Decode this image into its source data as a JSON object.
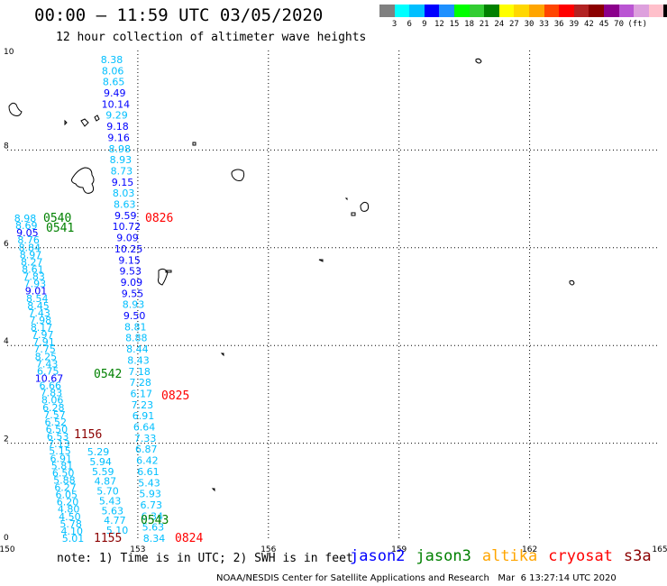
{
  "header": {
    "title": "00:00 – 11:59 UTC 03/05/2020",
    "subtitle": "12 hour collection of altimeter wave heights"
  },
  "colorbar": {
    "colors": [
      "#808080",
      "#00ffff",
      "#00bfff",
      "#0000ff",
      "#1e90ff",
      "#00ff00",
      "#32cd32",
      "#008000",
      "#ffff00",
      "#ffd700",
      "#ffa500",
      "#ff4500",
      "#ff0000",
      "#b22222",
      "#8b0000",
      "#8b008b",
      "#ba55d3",
      "#dda0dd",
      "#ffc0cb",
      "#000000"
    ],
    "labels": [
      "3",
      "6",
      "9",
      "12",
      "15",
      "18",
      "21",
      "24",
      "27",
      "30",
      "33",
      "36",
      "39",
      "42",
      "45",
      "70",
      "(ft)"
    ]
  },
  "axes": {
    "x_ticks": [
      "150",
      "153",
      "156",
      "159",
      "162",
      "165"
    ],
    "y_ticks": [
      "0",
      "2",
      "4",
      "6",
      "8",
      "10"
    ]
  },
  "track1": {
    "values": [
      "8.38",
      "8.06",
      "8.65",
      "9.49",
      "10.14",
      "9.29",
      "9.18",
      "9.16",
      "8.98",
      "8.93",
      "8.73",
      "9.15",
      "8.03",
      "8.63",
      "9.59",
      "10.72",
      "9.09",
      "10.25",
      "9.15",
      "9.53",
      "9.09",
      "9.55",
      "8.93",
      "9.50",
      "8.81",
      "8.88",
      "8.44",
      "8.43",
      "7.18",
      "7.28",
      "6.17",
      "7.23",
      "6.91",
      "6.64",
      "7.33",
      "6.87",
      "6.42",
      "6.61",
      "5.43",
      "5.93",
      "6.73",
      "6.34",
      "5.63",
      "8.34"
    ],
    "colors": [
      "#00bfff",
      "#00bfff",
      "#00bfff",
      "#0000ff",
      "#0000ff",
      "#00bfff",
      "#0000ff",
      "#0000ff",
      "#00bfff",
      "#00bfff",
      "#00bfff",
      "#0000ff",
      "#00bfff",
      "#00bfff",
      "#0000ff",
      "#0000ff",
      "#0000ff",
      "#0000ff",
      "#0000ff",
      "#0000ff",
      "#0000ff",
      "#0000ff",
      "#00bfff",
      "#0000ff",
      "#00bfff",
      "#00bfff",
      "#00bfff",
      "#00bfff",
      "#00bfff",
      "#00bfff",
      "#00bfff",
      "#00bfff",
      "#00bfff",
      "#00bfff",
      "#00bfff",
      "#00bfff",
      "#00bfff",
      "#00bfff",
      "#00bfff",
      "#00bfff",
      "#00bfff",
      "#00bfff",
      "#00bfff",
      "#00bfff"
    ]
  },
  "track2": {
    "values": [
      "8.98",
      "8.69",
      "9.05",
      "8.76",
      "8.84",
      "8.97",
      "8.27",
      "8.61",
      "7.83",
      "7.93",
      "9.01",
      "8.54",
      "8.45",
      "7.43",
      "7.98",
      "8.17",
      "7.97",
      "7.91",
      "7.75",
      "8.25",
      "7.43",
      "6.75",
      "10.67",
      "6.66",
      "7.83",
      "8.06",
      "6.28",
      "7.57",
      "6.52",
      "6.50",
      "6.53",
      "7.13",
      "5.15",
      "6.91",
      "5.81",
      "6.50",
      "5.88",
      "6.27",
      "6.05",
      "6.20",
      "4.80",
      "4.50",
      "5.78",
      "4.10",
      "5.01"
    ],
    "colors": [
      "#00bfff",
      "#00bfff",
      "#0000ff",
      "#00bfff",
      "#00bfff",
      "#00bfff",
      "#00bfff",
      "#00bfff",
      "#00bfff",
      "#00bfff",
      "#0000ff",
      "#00bfff",
      "#00bfff",
      "#00bfff",
      "#00bfff",
      "#00bfff",
      "#00bfff",
      "#00bfff",
      "#00bfff",
      "#00bfff",
      "#00bfff",
      "#00bfff",
      "#0000ff",
      "#00bfff",
      "#00bfff",
      "#00bfff",
      "#00bfff",
      "#00bfff",
      "#00bfff",
      "#00bfff",
      "#00bfff",
      "#00bfff",
      "#00bfff",
      "#00bfff",
      "#00bfff",
      "#00bfff",
      "#00bfff",
      "#00bfff",
      "#00bfff",
      "#00bfff",
      "#00bfff",
      "#00bfff",
      "#00bfff",
      "#00bfff",
      "#00bfff"
    ]
  },
  "track3": {
    "values": [
      "5.29",
      "5.94",
      "5.59",
      "4.87",
      "5.70",
      "5.43",
      "5.63",
      "4.77",
      "5.10"
    ],
    "colors": [
      "#00bfff",
      "#00bfff",
      "#00bfff",
      "#00bfff",
      "#00bfff",
      "#00bfff",
      "#00bfff",
      "#00bfff",
      "#00bfff"
    ]
  },
  "time_labels": {
    "t0540": {
      "text": "0540",
      "color": "#008000"
    },
    "t0541": {
      "text": "0541",
      "color": "#008000"
    },
    "t0542": {
      "text": "0542",
      "color": "#008000"
    },
    "t0543": {
      "text": "0543",
      "color": "#008000"
    },
    "t0826": {
      "text": "0826",
      "color": "#ff0000"
    },
    "t0825": {
      "text": "0825",
      "color": "#ff0000"
    },
    "t0824": {
      "text": "0824",
      "color": "#ff0000"
    },
    "t1156": {
      "text": "1156",
      "color": "#8b0000"
    },
    "t1155": {
      "text": "1155",
      "color": "#8b0000"
    }
  },
  "note": "note: 1) Time is in UTC; 2) SWH is in feet",
  "satellites": [
    {
      "name": "jason2",
      "color": "#0000ff"
    },
    {
      "name": "jason3",
      "color": "#008000"
    },
    {
      "name": "altika",
      "color": "#ffa500"
    },
    {
      "name": "cryosat",
      "color": "#ff0000"
    },
    {
      "name": "s3a",
      "color": "#8b0000"
    }
  ],
  "footer": "NOAA/NESDIS Center for Satellite Applications and Research   Mar  6 13:27:14 UTC 2020"
}
